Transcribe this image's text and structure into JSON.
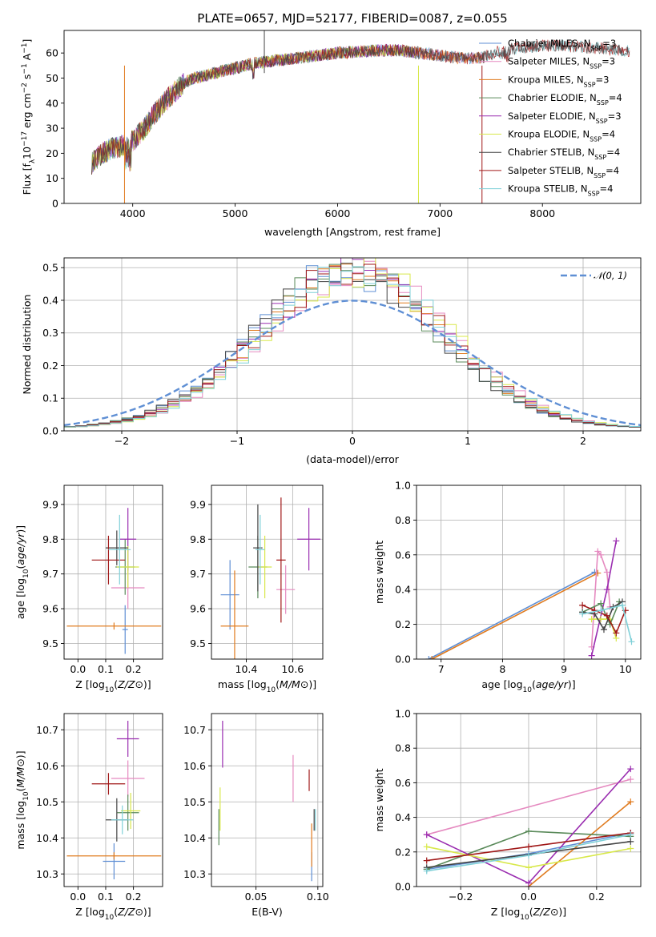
{
  "figure_title": "PLATE=0657, MJD=52177, FIBERID=0087, z=0.055",
  "colors": {
    "Chabrier MILES": "#5f8fd4",
    "Salpeter MILES": "#e58ac0",
    "Kroupa MILES": "#e07b1f",
    "Chabrier ELODIE": "#5a8a5a",
    "Salpeter ELODIE": "#9a2db0",
    "Kroupa ELODIE": "#d8e84a",
    "Chabrier STELIB": "#444444",
    "Salpeter STELIB": "#a01818",
    "Kroupa STELIB": "#7fd0d8"
  },
  "chart_data": [
    {
      "id": "spectrum",
      "type": "line",
      "xlabel": "wavelength [Angstrom, rest frame]",
      "ylabel_parts": [
        "Flux [f",
        "λ",
        "10",
        "−17",
        " erg cm",
        "−2",
        " s",
        "−1",
        " A",
        "−1",
        "]"
      ],
      "xlim": [
        3330,
        8960
      ],
      "ylim": [
        0,
        69
      ],
      "xticks": [
        4000,
        5000,
        6000,
        7000,
        8000
      ],
      "yticks": [
        0,
        10,
        20,
        30,
        40,
        50,
        60
      ],
      "grid": false,
      "legend_position": "top-right",
      "legend": [
        {
          "name": "Chabrier MILES",
          "nssp": "3"
        },
        {
          "name": "Salpeter MILES",
          "nssp": "3"
        },
        {
          "name": "Kroupa MILES",
          "nssp": "3"
        },
        {
          "name": "Chabrier ELODIE",
          "nssp": "4"
        },
        {
          "name": "Salpeter ELODIE",
          "nssp": "3"
        },
        {
          "name": "Kroupa ELODIE",
          "nssp": "4"
        },
        {
          "name": "Chabrier STELIB",
          "nssp": "4"
        },
        {
          "name": "Salpeter STELIB",
          "nssp": "4"
        },
        {
          "name": "Kroupa STELIB",
          "nssp": "4"
        }
      ],
      "continuum": {
        "x": [
          3600,
          3700,
          3800,
          3900,
          4000,
          4100,
          4200,
          4300,
          4400,
          4500,
          4600,
          4700,
          4800,
          5000,
          5200,
          5400,
          5600,
          5800,
          6000,
          6200,
          6400,
          6600,
          6800,
          7000,
          7200,
          7400,
          7600,
          7800,
          8000,
          8200,
          8500,
          8800
        ],
        "y": [
          16,
          20,
          22,
          23,
          25,
          29,
          35,
          40,
          44,
          48,
          50,
          51,
          52,
          54,
          56,
          57,
          58,
          59,
          60,
          60.5,
          61,
          61,
          60,
          59,
          58,
          58,
          61,
          62,
          63,
          63,
          62,
          61
        ]
      },
      "spikes": [
        {
          "x": 3920,
          "y": 0,
          "color": "#e07b1f"
        },
        {
          "x": 6790,
          "y": 0,
          "color": "#d8e84a"
        },
        {
          "x": 7410,
          "y": 0,
          "color": "#a01818"
        },
        {
          "x": 5285,
          "y": 69,
          "color": "#444444"
        }
      ]
    },
    {
      "id": "residuals",
      "type": "step",
      "xlabel": "(data-model)/error",
      "ylabel": "Normed distribution",
      "xlim": [
        -2.5,
        2.5
      ],
      "ylim": [
        0,
        0.53
      ],
      "xticks": [
        -2,
        -1,
        0,
        1,
        2
      ],
      "yticks": [
        0.0,
        0.1,
        0.2,
        0.3,
        0.4,
        0.5
      ],
      "grid": true,
      "legend_position": "top-right",
      "reference": {
        "label": "𝒩(0, 1)",
        "mean": 0,
        "sd": 1
      },
      "bin_width": 0.1
    },
    {
      "id": "z-age",
      "type": "errorbar",
      "xlabel": "Z [log10(Z/Z⊙)]",
      "ylabel": "age [log10(age/yr)]",
      "xlim": [
        -0.05,
        0.305
      ],
      "ylim": [
        9.455,
        9.955
      ],
      "xticks": [
        0.0,
        0.1,
        0.2
      ],
      "yticks": [
        9.5,
        9.6,
        9.7,
        9.8,
        9.9
      ],
      "grid": true,
      "points": [
        {
          "series": "Chabrier MILES",
          "x": 0.17,
          "xerr": 0.01,
          "y": 9.54,
          "yerr": 0.07
        },
        {
          "series": "Salpeter MILES",
          "x": 0.18,
          "xerr": 0.06,
          "y": 9.66,
          "yerr": 0.06
        },
        {
          "series": "Kroupa MILES",
          "x": 0.13,
          "xerr": 0.17,
          "y": 9.55,
          "yerr": 0.01
        },
        {
          "series": "Chabrier ELODIE",
          "x": 0.17,
          "xerr": 0.035,
          "y": 9.72,
          "yerr": 0.08
        },
        {
          "series": "Salpeter ELODIE",
          "x": 0.18,
          "xerr": 0.03,
          "y": 9.8,
          "yerr": 0.09
        },
        {
          "series": "Kroupa ELODIE",
          "x": 0.18,
          "xerr": 0.04,
          "y": 9.72,
          "yerr": 0.06
        },
        {
          "series": "Chabrier STELIB",
          "x": 0.14,
          "xerr": 0.04,
          "y": 9.775,
          "yerr": 0.05
        },
        {
          "series": "Salpeter STELIB",
          "x": 0.11,
          "xerr": 0.06,
          "y": 9.74,
          "yerr": 0.07
        },
        {
          "series": "Kroupa STELIB",
          "x": 0.15,
          "xerr": 0.04,
          "y": 9.77,
          "yerr": 0.1
        }
      ]
    },
    {
      "id": "mass-age",
      "type": "errorbar",
      "xlabel": "mass [log10(M/M⊙)]",
      "ylabel": "",
      "xlim": [
        10.25,
        10.73
      ],
      "ylim": [
        9.455,
        9.955
      ],
      "xticks": [
        10.4,
        10.6
      ],
      "yticks": [
        9.5,
        9.6,
        9.7,
        9.8,
        9.9
      ],
      "grid": true,
      "points": [
        {
          "series": "Chabrier MILES",
          "x": 10.33,
          "xerr": 0.04,
          "y": 9.64,
          "yerr": 0.1
        },
        {
          "series": "Salpeter MILES",
          "x": 10.57,
          "xerr": 0.04,
          "y": 9.655,
          "yerr": 0.07
        },
        {
          "series": "Kroupa MILES",
          "x": 10.35,
          "xerr": 0.06,
          "y": 9.55,
          "yerr": 0.16
        },
        {
          "series": "Chabrier ELODIE",
          "x": 10.45,
          "xerr": 0.04,
          "y": 9.72,
          "yerr": 0.09
        },
        {
          "series": "Salpeter ELODIE",
          "x": 10.67,
          "xerr": 0.05,
          "y": 9.8,
          "yerr": 0.09
        },
        {
          "series": "Kroupa ELODIE",
          "x": 10.48,
          "xerr": 0.03,
          "y": 9.72,
          "yerr": 0.09
        },
        {
          "series": "Chabrier STELIB",
          "x": 10.45,
          "xerr": 0.02,
          "y": 9.775,
          "yerr": 0.125
        },
        {
          "series": "Salpeter STELIB",
          "x": 10.55,
          "xerr": 0.02,
          "y": 9.74,
          "yerr": 0.18
        },
        {
          "series": "Kroupa STELIB",
          "x": 10.46,
          "xerr": 0.02,
          "y": 9.77,
          "yerr": 0.1
        }
      ]
    },
    {
      "id": "weights-age",
      "type": "line",
      "xlabel": "age [log10(age/yr)]",
      "ylabel": "mass weight",
      "xlim": [
        6.6,
        10.25
      ],
      "ylim": [
        0,
        1.0
      ],
      "xticks": [
        7,
        8,
        9,
        10
      ],
      "yticks": [
        0.0,
        0.2,
        0.4,
        0.6,
        0.8,
        1.0
      ],
      "grid": true,
      "series": [
        {
          "name": "Chabrier MILES",
          "x": [
            6.8,
            9.5
          ],
          "y": [
            0.0,
            0.5
          ]
        },
        {
          "name": "Kroupa MILES",
          "x": [
            6.85,
            9.55
          ],
          "y": [
            0.0,
            0.495
          ]
        },
        {
          "name": "Salpeter MILES",
          "x": [
            9.45,
            9.55,
            9.6,
            9.7,
            9.75
          ],
          "y": [
            0.07,
            0.62,
            0.6,
            0.5,
            0.3
          ]
        },
        {
          "name": "Salpeter ELODIE",
          "x": [
            9.45,
            9.7,
            9.85
          ],
          "y": [
            0.02,
            0.4,
            0.68
          ]
        },
        {
          "name": "Kroupa ELODIE",
          "x": [
            9.45,
            9.6,
            9.75,
            9.85
          ],
          "y": [
            0.23,
            0.23,
            0.23,
            0.12
          ]
        },
        {
          "name": "Chabrier ELODIE",
          "x": [
            9.3,
            9.6,
            9.75,
            9.9
          ],
          "y": [
            0.27,
            0.32,
            0.2,
            0.33
          ]
        },
        {
          "name": "Chabrier STELIB",
          "x": [
            9.3,
            9.5,
            9.65,
            9.8,
            9.95
          ],
          "y": [
            0.27,
            0.26,
            0.17,
            0.3,
            0.33
          ]
        },
        {
          "name": "Salpeter STELIB",
          "x": [
            9.3,
            9.5,
            9.7,
            9.85,
            10.0
          ],
          "y": [
            0.31,
            0.28,
            0.25,
            0.15,
            0.28
          ]
        },
        {
          "name": "Kroupa STELIB",
          "x": [
            9.3,
            9.6,
            9.95,
            10.1
          ],
          "y": [
            0.26,
            0.28,
            0.31,
            0.1
          ]
        }
      ]
    },
    {
      "id": "z-mass",
      "type": "errorbar",
      "xlabel": "Z [log10(Z/Z⊙)]",
      "ylabel": "mass [log10(M/M⊙)]",
      "xlim": [
        -0.05,
        0.305
      ],
      "ylim": [
        10.265,
        10.745
      ],
      "xticks": [
        0.0,
        0.1,
        0.2
      ],
      "yticks": [
        10.3,
        10.4,
        10.5,
        10.6,
        10.7
      ],
      "grid": true,
      "points": [
        {
          "series": "Chabrier MILES",
          "x": 0.13,
          "xerr": 0.04,
          "y": 10.335,
          "yerr": 0.05
        },
        {
          "series": "Salpeter MILES",
          "x": 0.18,
          "xerr": 0.06,
          "y": 10.565,
          "yerr": 0.05
        },
        {
          "series": "Kroupa MILES",
          "x": 0.13,
          "xerr": 0.17,
          "y": 10.35,
          "yerr": 0.01
        },
        {
          "series": "Chabrier ELODIE",
          "x": 0.18,
          "xerr": 0.04,
          "y": 10.47,
          "yerr": 0.05
        },
        {
          "series": "Salpeter ELODIE",
          "x": 0.18,
          "xerr": 0.04,
          "y": 10.675,
          "yerr": 0.05
        },
        {
          "series": "Kroupa ELODIE",
          "x": 0.19,
          "xerr": 0.035,
          "y": 10.475,
          "yerr": 0.05
        },
        {
          "series": "Chabrier STELIB",
          "x": 0.14,
          "xerr": 0.04,
          "y": 10.45,
          "yerr": 0.06
        },
        {
          "series": "Salpeter STELIB",
          "x": 0.11,
          "xerr": 0.06,
          "y": 10.55,
          "yerr": 0.03
        },
        {
          "series": "Kroupa STELIB",
          "x": 0.16,
          "xerr": 0.04,
          "y": 10.45,
          "yerr": 0.04
        }
      ]
    },
    {
      "id": "ebv-mass",
      "type": "errorbar",
      "xlabel": "E(B-V)",
      "ylabel": "",
      "xlim": [
        0.014,
        0.104
      ],
      "ylim": [
        10.265,
        10.745
      ],
      "xticks": [
        0.05,
        0.1
      ],
      "yticks": [
        10.3,
        10.4,
        10.5,
        10.6,
        10.7
      ],
      "grid": true,
      "points": [
        {
          "series": "Chabrier MILES",
          "x": 0.095,
          "xerr": 0,
          "y": 10.32,
          "yerr": 0.04
        },
        {
          "series": "Salpeter MILES",
          "x": 0.08,
          "xerr": 0,
          "y": 10.565,
          "yerr": 0.065
        },
        {
          "series": "Kroupa MILES",
          "x": 0.095,
          "xerr": 0,
          "y": 10.38,
          "yerr": 0.06
        },
        {
          "series": "Chabrier ELODIE",
          "x": 0.02,
          "xerr": 0,
          "y": 10.43,
          "yerr": 0.05
        },
        {
          "series": "Salpeter ELODIE",
          "x": 0.023,
          "xerr": 0,
          "y": 10.66,
          "yerr": 0.065
        },
        {
          "series": "Kroupa ELODIE",
          "x": 0.021,
          "xerr": 0,
          "y": 10.48,
          "yerr": 0.06
        },
        {
          "series": "Chabrier STELIB",
          "x": 0.097,
          "xerr": 0,
          "y": 10.45,
          "yerr": 0.03
        },
        {
          "series": "Salpeter STELIB",
          "x": 0.093,
          "xerr": 0,
          "y": 10.56,
          "yerr": 0.03
        },
        {
          "series": "Kroupa STELIB",
          "x": 0.098,
          "xerr": 0,
          "y": 10.45,
          "yerr": 0.03
        }
      ]
    },
    {
      "id": "weights-z",
      "type": "line",
      "xlabel": "Z [log10(Z/Z⊙)]",
      "ylabel": "mass weight",
      "xlim": [
        -0.33,
        0.33
      ],
      "ylim": [
        0,
        1.0
      ],
      "xticks": [
        -0.2,
        0.0,
        0.2
      ],
      "yticks": [
        0.0,
        0.2,
        0.4,
        0.6,
        0.8,
        1.0
      ],
      "grid": true,
      "series": [
        {
          "name": "Chabrier MILES",
          "x": [
            -0.3,
            0.0,
            0.3
          ],
          "y": [
            0.1,
            0.19,
            0.31
          ]
        },
        {
          "name": "Salpeter MILES",
          "x": [
            -0.3,
            0.3
          ],
          "y": [
            0.3,
            0.62
          ]
        },
        {
          "name": "Kroupa MILES",
          "x": [
            0.0,
            0.3
          ],
          "y": [
            0.0,
            0.49
          ]
        },
        {
          "name": "Chabrier ELODIE",
          "x": [
            -0.3,
            0.0,
            0.3
          ],
          "y": [
            0.1,
            0.32,
            0.29
          ]
        },
        {
          "name": "Salpeter ELODIE",
          "x": [
            -0.3,
            0.0,
            0.3
          ],
          "y": [
            0.3,
            0.02,
            0.68
          ]
        },
        {
          "name": "Kroupa ELODIE",
          "x": [
            -0.3,
            0.0,
            0.3
          ],
          "y": [
            0.23,
            0.11,
            0.22
          ]
        },
        {
          "name": "Chabrier STELIB",
          "x": [
            -0.3,
            0.3
          ],
          "y": [
            0.11,
            0.26
          ]
        },
        {
          "name": "Salpeter STELIB",
          "x": [
            -0.3,
            0.0,
            0.3
          ],
          "y": [
            0.15,
            0.23,
            0.31
          ]
        },
        {
          "name": "Kroupa STELIB",
          "x": [
            -0.3,
            0.0,
            0.3
          ],
          "y": [
            0.09,
            0.18,
            0.3
          ]
        }
      ]
    }
  ]
}
